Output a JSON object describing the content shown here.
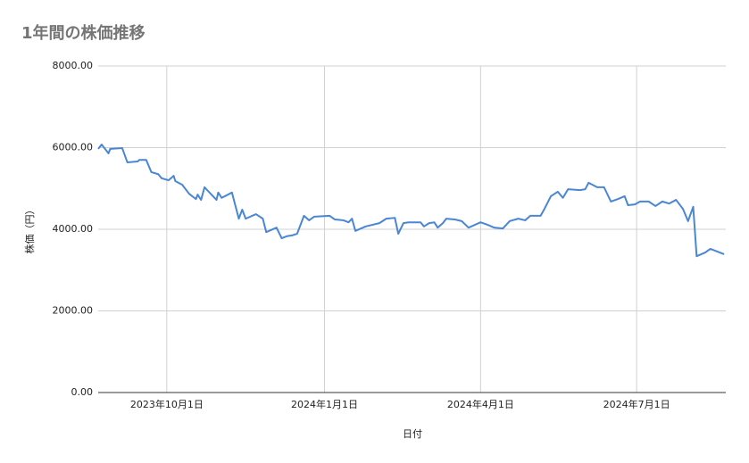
{
  "chart_data": {
    "type": "line",
    "title": "1年間の株価推移",
    "x_label": "日付",
    "y_label": "株価（円）",
    "x": [
      "2023-08-22",
      "2023-08-24",
      "2023-08-28",
      "2023-08-29",
      "2023-09-05",
      "2023-09-08",
      "2023-09-14",
      "2023-09-15",
      "2023-09-19",
      "2023-09-22",
      "2023-09-26",
      "2023-09-28",
      "2023-10-02",
      "2023-10-05",
      "2023-10-06",
      "2023-10-10",
      "2023-10-14",
      "2023-10-18",
      "2023-10-19",
      "2023-10-21",
      "2023-10-23",
      "2023-10-27",
      "2023-10-30",
      "2023-10-31",
      "2023-11-02",
      "2023-11-08",
      "2023-11-12",
      "2023-11-14",
      "2023-11-16",
      "2023-11-22",
      "2023-11-26",
      "2023-11-28",
      "2023-12-04",
      "2023-12-07",
      "2023-12-10",
      "2023-12-13",
      "2023-12-16",
      "2023-12-20",
      "2023-12-23",
      "2023-12-26",
      "2024-01-04",
      "2024-01-07",
      "2024-01-12",
      "2024-01-15",
      "2024-01-17",
      "2024-01-19",
      "2024-01-25",
      "2024-02-02",
      "2024-02-06",
      "2024-02-11",
      "2024-02-13",
      "2024-02-16",
      "2024-02-19",
      "2024-02-26",
      "2024-02-28",
      "2024-03-02",
      "2024-03-05",
      "2024-03-07",
      "2024-03-10",
      "2024-03-12",
      "2024-03-17",
      "2024-03-21",
      "2024-03-25",
      "2024-04-01",
      "2024-04-05",
      "2024-04-09",
      "2024-04-14",
      "2024-04-18",
      "2024-04-23",
      "2024-04-27",
      "2024-04-30",
      "2024-05-06",
      "2024-05-08",
      "2024-05-12",
      "2024-05-16",
      "2024-05-19",
      "2024-05-22",
      "2024-05-29",
      "2024-06-01",
      "2024-06-03",
      "2024-06-08",
      "2024-06-12",
      "2024-06-16",
      "2024-06-20",
      "2024-06-24",
      "2024-06-26",
      "2024-06-30",
      "2024-07-03",
      "2024-07-08",
      "2024-07-12",
      "2024-07-16",
      "2024-07-20",
      "2024-07-24",
      "2024-07-28",
      "2024-07-31",
      "2024-08-03",
      "2024-08-05",
      "2024-08-10",
      "2024-08-13",
      "2024-08-21"
    ],
    "series": [
      {
        "color": "#4a86d4",
        "values": [
          5970,
          6076,
          5860,
          5970,
          5990,
          5640,
          5660,
          5700,
          5700,
          5400,
          5350,
          5250,
          5200,
          5310,
          5180,
          5090,
          4870,
          4740,
          4850,
          4720,
          5030,
          4850,
          4720,
          4900,
          4770,
          4900,
          4260,
          4480,
          4260,
          4370,
          4260,
          3930,
          4040,
          3780,
          3830,
          3850,
          3890,
          4330,
          4220,
          4310,
          4330,
          4240,
          4220,
          4170,
          4260,
          3960,
          4070,
          4150,
          4260,
          4280,
          3890,
          4150,
          4170,
          4170,
          4070,
          4150,
          4170,
          4040,
          4150,
          4260,
          4240,
          4200,
          4040,
          4170,
          4110,
          4040,
          4020,
          4200,
          4260,
          4220,
          4330,
          4330,
          4480,
          4810,
          4920,
          4770,
          4980,
          4960,
          4980,
          5140,
          5030,
          5030,
          4680,
          4740,
          4810,
          4590,
          4610,
          4680,
          4680,
          4570,
          4680,
          4630,
          4720,
          4500,
          4200,
          4550,
          3340,
          3430,
          3520,
          3390
        ]
      }
    ],
    "xlim": [
      "2023-08-22",
      "2024-08-22"
    ],
    "xticks": [
      {
        "value": "2023-10-01",
        "label": "2023年10月1日"
      },
      {
        "value": "2024-01-01",
        "label": "2024年1月1日"
      },
      {
        "value": "2024-04-01",
        "label": "2024年4月1日"
      },
      {
        "value": "2024-07-01",
        "label": "2024年7月1日"
      }
    ],
    "ylim": [
      0,
      8000
    ],
    "yticks": [
      {
        "value": 0,
        "label": "0.00"
      },
      {
        "value": 2000,
        "label": "2000.00"
      },
      {
        "value": 4000,
        "label": "4000.00"
      },
      {
        "value": 6000,
        "label": "6000.00"
      },
      {
        "value": 8000,
        "label": "8000.00"
      }
    ],
    "grid": true
  }
}
